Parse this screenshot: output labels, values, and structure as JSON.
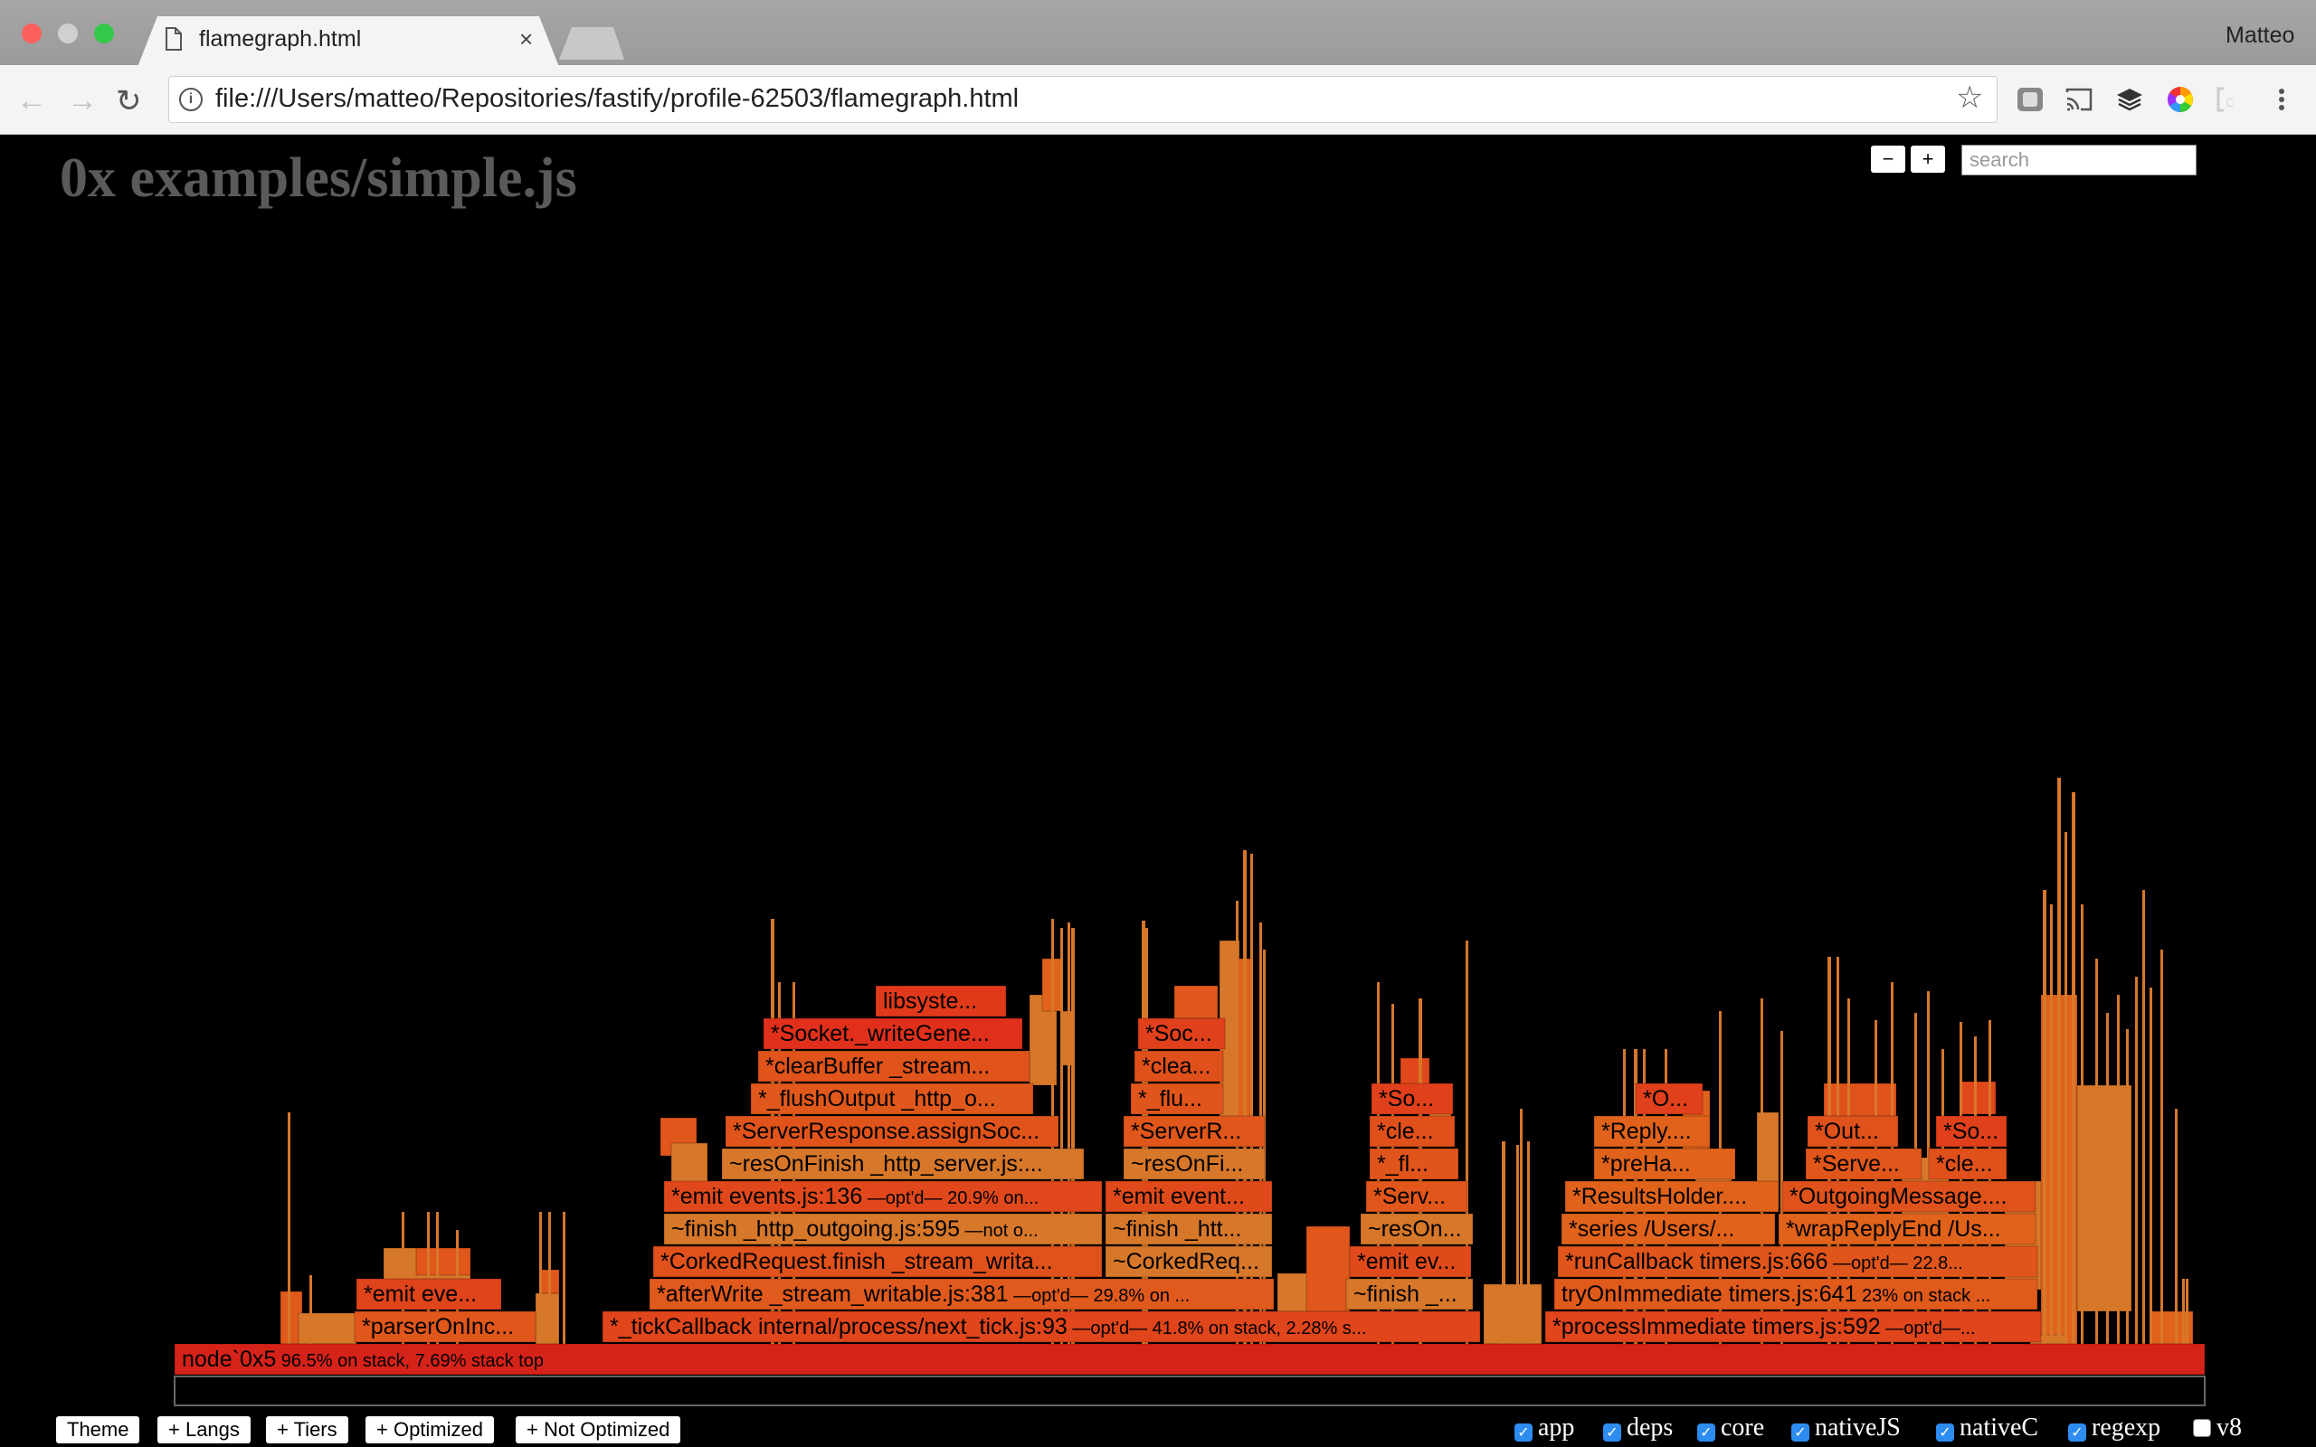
{
  "browser": {
    "tab_title": "flamegraph.html",
    "tab_close": "×",
    "profile_name": "Matteo",
    "url": "file:///Users/matteo/Repositories/fastify/profile-62503/flamegraph.html",
    "back_icon": "←",
    "forward_icon": "→",
    "reload_icon": "↻",
    "star_icon": "☆",
    "info_icon": "i"
  },
  "page": {
    "title": "0x examples/simple.js",
    "zoom_out": "−",
    "zoom_in": "+",
    "search_placeholder": "search"
  },
  "bottom_buttons": [
    "Theme",
    "+ Langs",
    "+ Tiers",
    "+ Optimized",
    "+ Not Optimized"
  ],
  "legend": [
    {
      "label": "app",
      "checked": true
    },
    {
      "label": "deps",
      "checked": true
    },
    {
      "label": "core",
      "checked": true
    },
    {
      "label": "nativeJS",
      "checked": true
    },
    {
      "label": "nativeC",
      "checked": true
    },
    {
      "label": "regexp",
      "checked": true
    },
    {
      "label": "v8",
      "checked": false
    }
  ],
  "frames": [
    {
      "name": "node`0x5",
      "info": "96.5% on stack, 7.69% stack top",
      "color": "#d6231a"
    },
    {
      "name": "*parserOnInc...",
      "color": "#e0561b"
    },
    {
      "name": "*emit eve...",
      "color": "#e0441b"
    },
    {
      "name": "*_tickCallback internal/process/next_tick.js:93",
      "info": "—opt'd— 41.8% on stack, 2.28% s...",
      "color": "#e0451b"
    },
    {
      "name": "*afterWrite _stream_writable.js:381",
      "info": "—opt'd— 29.8% on ...",
      "color": "#e05a1d"
    },
    {
      "name": "*CorkedRequest.finish _stream_writa...",
      "color": "#e0511b"
    },
    {
      "name": "~finish _http_outgoing.js:595",
      "info": "—not o...",
      "color": "#d6772a"
    },
    {
      "name": "*emit events.js:136",
      "info": "—opt'd— 20.9% on...",
      "color": "#e0481b"
    },
    {
      "name": "~resOnFinish _http_server.js:...",
      "color": "#d6772a"
    },
    {
      "name": "*ServerResponse.assignSoc...",
      "color": "#e0541b"
    },
    {
      "name": "*_flushOutput _http_o...",
      "color": "#e0581b"
    },
    {
      "name": "*clearBuffer _stream...",
      "color": "#e0531b"
    },
    {
      "name": "*Socket._writeGene...",
      "color": "#e0301b"
    },
    {
      "name": "libsyste...",
      "color": "#e03a1b"
    },
    {
      "name": "~finish _htt...",
      "color": "#d6772a"
    },
    {
      "name": "*emit event...",
      "color": "#e04a1b"
    },
    {
      "name": "~CorkedReq...",
      "color": "#d6772a"
    },
    {
      "name": "~resOnFi...",
      "color": "#d6772a"
    },
    {
      "name": "*ServerR...",
      "color": "#e0561b"
    },
    {
      "name": "*_flu...",
      "color": "#e0551b"
    },
    {
      "name": "*clea...",
      "color": "#e0501b"
    },
    {
      "name": "*Soc...",
      "color": "#e0401b"
    },
    {
      "name": "~finish _...",
      "color": "#d6772a"
    },
    {
      "name": "*emit ev...",
      "color": "#e04a1b"
    },
    {
      "name": "~resOn...",
      "color": "#d6772a"
    },
    {
      "name": "*Serv...",
      "color": "#e0561b"
    },
    {
      "name": "*_fl...",
      "color": "#e0551b"
    },
    {
      "name": "*cle...",
      "color": "#e0501b"
    },
    {
      "name": "*So...",
      "color": "#e0401b"
    },
    {
      "name": "*processImmediate timers.js:592",
      "info": "—opt'd—...",
      "color": "#e0451b"
    },
    {
      "name": "tryOnImmediate timers.js:641",
      "info": "23% on stack ...",
      "color": "#e05a1b"
    },
    {
      "name": "*runCallback timers.js:666",
      "info": "—opt'd— 22.8...",
      "color": "#e0551b"
    },
    {
      "name": "*series /Users/...",
      "color": "#e0621b"
    },
    {
      "name": "*ResultsHolder....",
      "color": "#e0621b"
    },
    {
      "name": "*preHa...",
      "color": "#e0621b"
    },
    {
      "name": "*Reply....",
      "color": "#e0621b"
    },
    {
      "name": "*O...",
      "color": "#e0401b"
    },
    {
      "name": "*wrapReplyEnd /Us...",
      "color": "#e0621b"
    },
    {
      "name": "*OutgoingMessage....",
      "color": "#e0521b"
    },
    {
      "name": "*Serve...",
      "color": "#e0561b"
    },
    {
      "name": "*Out...",
      "color": "#e0521b"
    },
    {
      "name": "*cle...",
      "color": "#e0501b"
    },
    {
      "name": "*So...",
      "color": "#e0401b"
    }
  ]
}
